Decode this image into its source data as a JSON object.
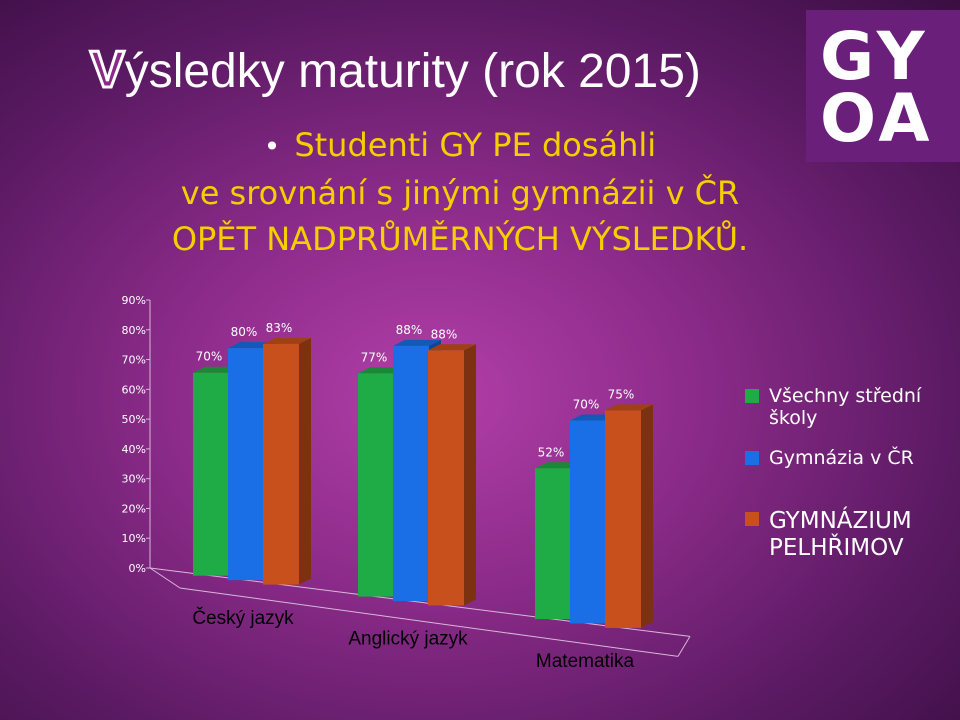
{
  "title": {
    "first_letter": "V",
    "rest": "ýsledky maturity (rok 2015)"
  },
  "logo": {
    "line1": "GY",
    "line2": "OA"
  },
  "bullet": {
    "line1": "Studenti GY PE dosáhli",
    "line2": "ve srovnání s jinými gymnázii v ČR",
    "line3": "OPĚT NADPRŮMĚRNÝCH VÝSLEDKŮ."
  },
  "chart_data": {
    "type": "bar",
    "subtype": "3d-clustered",
    "categories": [
      "Český jazyk",
      "Anglický jazyk",
      "Matematika"
    ],
    "series": [
      {
        "name": "Všechny střední školy",
        "values": [
          70,
          77,
          52
        ],
        "labels": [
          "70%",
          "77%",
          "52%"
        ]
      },
      {
        "name": "Gymnázia v ČR",
        "values": [
          80,
          88,
          70
        ],
        "labels": [
          "80%",
          "88%",
          "70%"
        ]
      },
      {
        "name": "GYMNÁZIUM PELHŘIMOV",
        "values": [
          83,
          88,
          75
        ],
        "labels": [
          "83%",
          "88%",
          "75%"
        ]
      }
    ],
    "y_ticks": [
      "0%",
      "10%",
      "20%",
      "30%",
      "40%",
      "50%",
      "60%",
      "70%",
      "80%",
      "90%"
    ],
    "ylim": [
      0,
      90
    ],
    "grid": false,
    "legend_position": "right",
    "colors": [
      "#1fab45",
      "#1a6fe6",
      "#c8501c"
    ]
  }
}
